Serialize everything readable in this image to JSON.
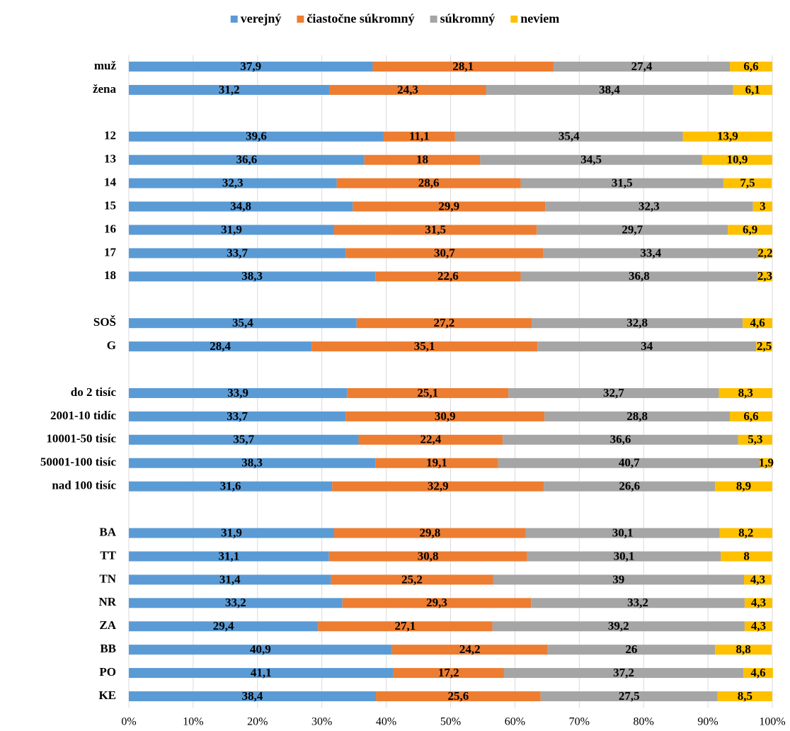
{
  "chart_data": {
    "type": "stacked-barh",
    "categories": [
      "muž",
      "žena",
      null,
      "12",
      "13",
      "14",
      "15",
      "16",
      "17",
      "18",
      null,
      "SOŠ",
      "G",
      null,
      "do 2 tisíc",
      "2001-10 tidíc",
      "10001-50 tisíc",
      "50001-100 tisíc",
      "nad 100 tisíc",
      null,
      "BA",
      "TT",
      "TN",
      "NR",
      "ZA",
      "BB",
      "PO",
      "KE"
    ],
    "series": [
      {
        "name": "verejný",
        "color": "#5b9bd5",
        "values": [
          37.9,
          31.2,
          null,
          39.6,
          36.6,
          32.3,
          34.8,
          31.9,
          33.7,
          38.3,
          null,
          35.4,
          28.4,
          null,
          33.9,
          33.7,
          35.7,
          38.3,
          31.6,
          null,
          31.9,
          31.1,
          31.4,
          33.2,
          29.4,
          40.9,
          41.1,
          38.4
        ],
        "value_labels": [
          "37,9",
          "31,2",
          null,
          "39,6",
          "36,6",
          "32,3",
          "34,8",
          "31,9",
          "33,7",
          "38,3",
          null,
          "35,4",
          "28,4",
          null,
          "33,9",
          "33,7",
          "35,7",
          "38,3",
          "31,6",
          null,
          "31,9",
          "31,1",
          "31,4",
          "33,2",
          "29,4",
          "40,9",
          "41,1",
          "38,4"
        ]
      },
      {
        "name": "čiastočne súkromný",
        "color": "#ed7d31",
        "values": [
          28.1,
          24.3,
          null,
          11.1,
          18,
          28.6,
          29.9,
          31.5,
          30.7,
          22.6,
          null,
          27.2,
          35.1,
          null,
          25.1,
          30.9,
          22.4,
          19.1,
          32.9,
          null,
          29.8,
          30.8,
          25.2,
          29.3,
          27.1,
          24.2,
          17.2,
          25.6
        ],
        "value_labels": [
          "28,1",
          "24,3",
          null,
          "11,1",
          "18",
          "28,6",
          "29,9",
          "31,5",
          "30,7",
          "22,6",
          null,
          "27,2",
          "35,1",
          null,
          "25,1",
          "30,9",
          "22,4",
          "19,1",
          "32,9",
          null,
          "29,8",
          "30,8",
          "25,2",
          "29,3",
          "27,1",
          "24,2",
          "17,2",
          "25,6"
        ]
      },
      {
        "name": "súkromný",
        "color": "#a5a5a5",
        "values": [
          27.4,
          38.4,
          null,
          35.4,
          34.5,
          31.5,
          32.3,
          29.7,
          33.4,
          36.8,
          null,
          32.8,
          34,
          null,
          32.7,
          28.8,
          36.6,
          40.7,
          26.6,
          null,
          30.1,
          30.1,
          39,
          33.2,
          39.2,
          26,
          37.2,
          27.5
        ],
        "value_labels": [
          "27,4",
          "38,4",
          null,
          "35,4",
          "34,5",
          "31,5",
          "32,3",
          "29,7",
          "33,4",
          "36,8",
          null,
          "32,8",
          "34",
          null,
          "32,7",
          "28,8",
          "36,6",
          "40,7",
          "26,6",
          null,
          "30,1",
          "30,1",
          "39",
          "33,2",
          "39,2",
          "26",
          "37,2",
          "27,5"
        ]
      },
      {
        "name": "neviem",
        "color": "#ffc000",
        "values": [
          6.6,
          6.1,
          null,
          13.9,
          10.9,
          7.5,
          3,
          6.9,
          2.2,
          2.3,
          null,
          4.6,
          2.5,
          null,
          8.3,
          6.6,
          5.3,
          1.9,
          8.9,
          null,
          8.2,
          8,
          4.3,
          4.3,
          4.3,
          8.8,
          4.6,
          8.5
        ],
        "value_labels": [
          "6,6",
          "6,1",
          null,
          "13,9",
          "10,9",
          "7,5",
          "3",
          "6,9",
          "2,2",
          "2,3",
          null,
          "4,6",
          "2,5",
          null,
          "8,3",
          "6,6",
          "5,3",
          "1,9",
          "8,9",
          null,
          "8,2",
          "8",
          "4,3",
          "4,3",
          "4,3",
          "8,8",
          "4,6",
          "8,5"
        ]
      }
    ],
    "xlim": [
      0,
      100
    ],
    "xticks": [
      {
        "value": 0,
        "label": "0%"
      },
      {
        "value": 10,
        "label": "10%"
      },
      {
        "value": 20,
        "label": "20%"
      },
      {
        "value": 30,
        "label": "30%"
      },
      {
        "value": 40,
        "label": "40%"
      },
      {
        "value": 50,
        "label": "50%"
      },
      {
        "value": 60,
        "label": "60%"
      },
      {
        "value": 70,
        "label": "70%"
      },
      {
        "value": 80,
        "label": "80%"
      },
      {
        "value": 90,
        "label": "90%"
      },
      {
        "value": 100,
        "label": "100%"
      }
    ],
    "grid": true,
    "legend": "top"
  }
}
